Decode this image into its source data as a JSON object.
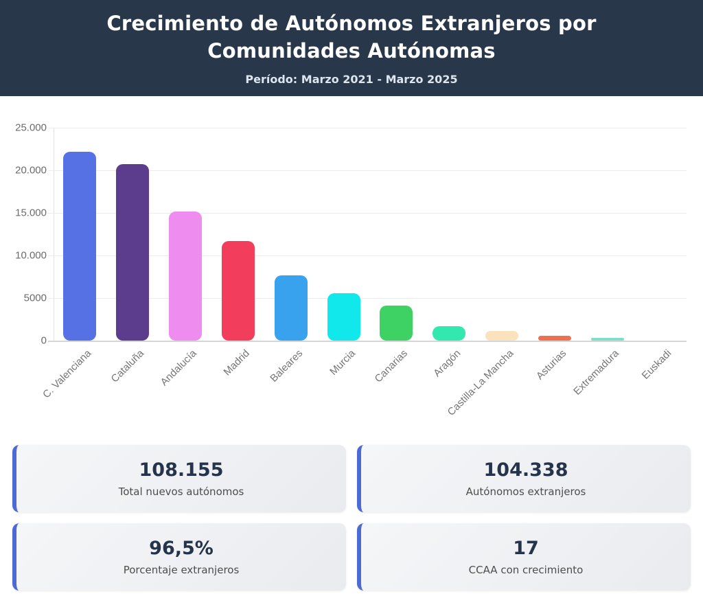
{
  "header": {
    "title": "Crecimiento de Autónomos Extranjeros por Comunidades Autónomas",
    "subtitle": "Período: Marzo 2021 - Marzo 2025"
  },
  "chart_data": {
    "type": "bar",
    "title": "",
    "xlabel": "",
    "ylabel": "",
    "categories": [
      "C. Valenciana",
      "Cataluña",
      "Andalucía",
      "Madrid",
      "Baleares",
      "Murcia",
      "Canarias",
      "Aragón",
      "Castilla-La Mancha",
      "Asturias",
      "Extremadura",
      "Euskadi"
    ],
    "values": [
      22200,
      20700,
      15200,
      11700,
      7700,
      5600,
      4100,
      1700,
      1100,
      550,
      300,
      30
    ],
    "colors": [
      "#5671e4",
      "#5c3c8c",
      "#ee8cf0",
      "#f23d5c",
      "#39a2ee",
      "#10e8ec",
      "#3ed164",
      "#32e8ae",
      "#fae3bc",
      "#ed7050",
      "#82dcca",
      "#b9e9e2"
    ],
    "ylim": [
      0,
      25000
    ],
    "yticks": [
      {
        "value": 0,
        "label": "0"
      },
      {
        "value": 5000,
        "label": "5000"
      },
      {
        "value": 10000,
        "label": "10.000"
      },
      {
        "value": 15000,
        "label": "15.000"
      },
      {
        "value": 20000,
        "label": "20.000"
      },
      {
        "value": 25000,
        "label": "25.000"
      }
    ],
    "grid": true,
    "legend": "none"
  },
  "stats": {
    "cards": [
      {
        "value": "108.155",
        "label": "Total nuevos autónomos"
      },
      {
        "value": "104.338",
        "label": "Autónomos extranjeros"
      },
      {
        "value": "96,5%",
        "label": "Porcentaje extranjeros"
      },
      {
        "value": "17",
        "label": "CCAA con crecimiento"
      }
    ]
  },
  "colors": {
    "header_bg": "#28374a",
    "card_accent": "#4c69d4",
    "grid_line": "#ececec",
    "axis_text": "#6b6b6b"
  }
}
